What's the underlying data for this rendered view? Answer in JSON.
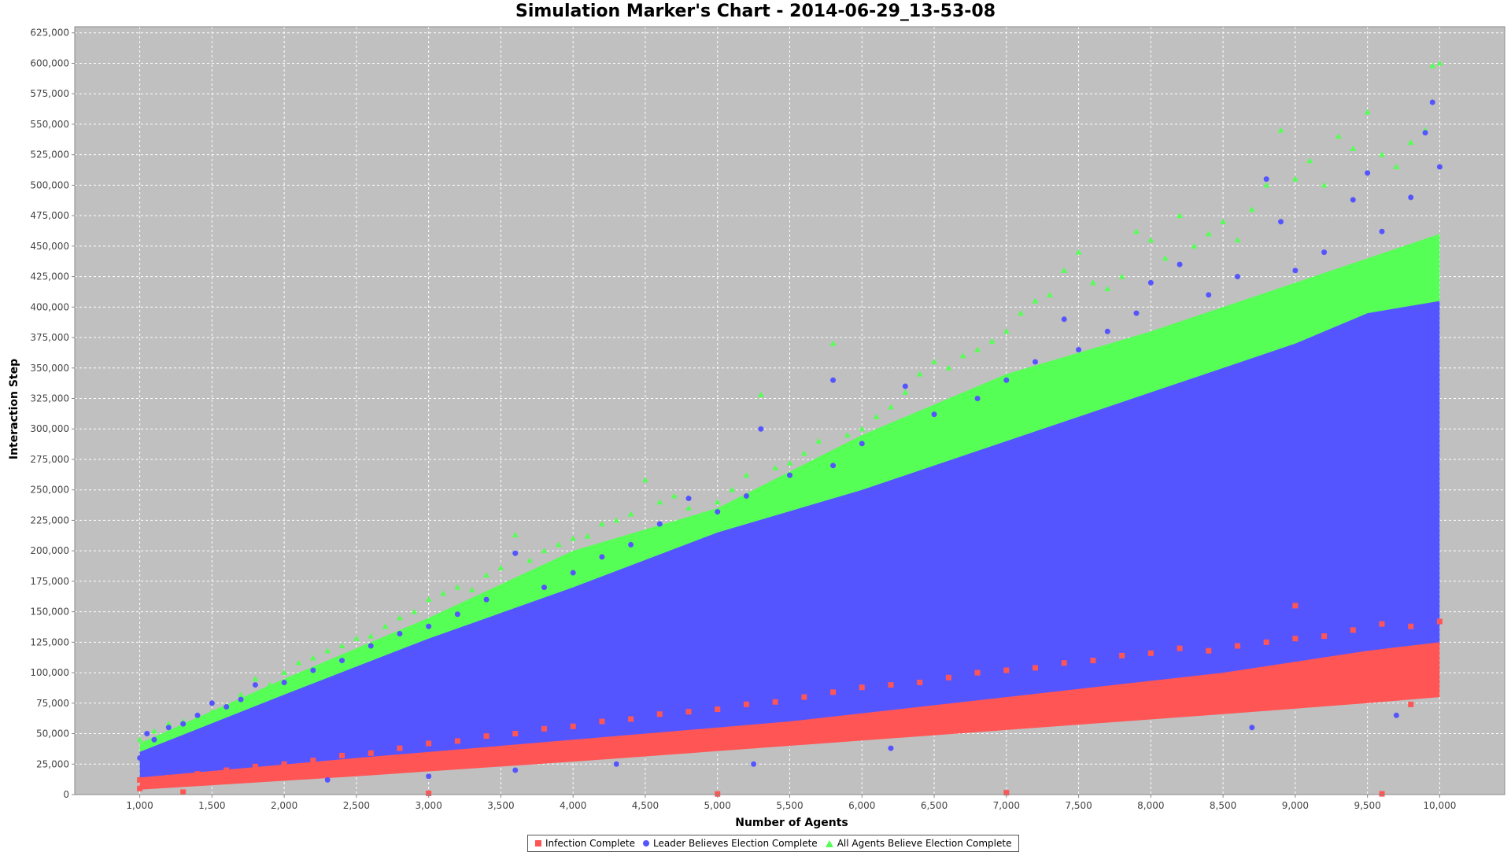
{
  "chart_data": {
    "type": "scatter",
    "title": "Simulation Marker's Chart - 2014-06-29_13-53-08",
    "xlabel": "Number of Agents",
    "ylabel": "Interaction Step",
    "xlim": [
      550,
      10450
    ],
    "ylim": [
      0,
      630000
    ],
    "x_ticks": [
      1000,
      1500,
      2000,
      2500,
      3000,
      3500,
      4000,
      4500,
      5000,
      5500,
      6000,
      6500,
      7000,
      7500,
      8000,
      8500,
      9000,
      9500,
      10000
    ],
    "x_tick_labels": [
      "1,000",
      "1,500",
      "2,000",
      "2,500",
      "3,000",
      "3,500",
      "4,000",
      "4,500",
      "5,000",
      "5,500",
      "6,000",
      "6,500",
      "7,000",
      "7,500",
      "8,000",
      "8,500",
      "9,000",
      "9,500",
      "10,000"
    ],
    "y_ticks": [
      0,
      25000,
      50000,
      75000,
      100000,
      125000,
      150000,
      175000,
      200000,
      225000,
      250000,
      275000,
      300000,
      325000,
      350000,
      375000,
      400000,
      425000,
      450000,
      475000,
      500000,
      525000,
      550000,
      575000,
      600000,
      625000
    ],
    "y_tick_labels": [
      "0",
      "25,000",
      "50,000",
      "75,000",
      "100,000",
      "125,000",
      "150,000",
      "175,000",
      "200,000",
      "225,000",
      "250,000",
      "275,000",
      "300,000",
      "325,000",
      "350,000",
      "375,000",
      "400,000",
      "425,000",
      "450,000",
      "475,000",
      "500,000",
      "525,000",
      "550,000",
      "575,000",
      "600,000",
      "625,000"
    ],
    "grid": true,
    "legend_position": "bottom-center",
    "background_color": "#c0c0c0",
    "series": [
      {
        "name": "All Agents Believe Election Complete",
        "marker": "triangle",
        "color": "#55ff55",
        "points": [
          [
            1000,
            45000
          ],
          [
            1100,
            52000
          ],
          [
            1200,
            58000
          ],
          [
            1300,
            60000
          ],
          [
            1400,
            64000
          ],
          [
            1500,
            68000
          ],
          [
            1600,
            72000
          ],
          [
            1700,
            82000
          ],
          [
            1800,
            95000
          ],
          [
            1900,
            90000
          ],
          [
            2000,
            100000
          ],
          [
            2100,
            108000
          ],
          [
            2200,
            112000
          ],
          [
            2300,
            118000
          ],
          [
            2400,
            122000
          ],
          [
            2500,
            128000
          ],
          [
            2600,
            130000
          ],
          [
            2700,
            138000
          ],
          [
            2800,
            145000
          ],
          [
            2900,
            150000
          ],
          [
            3000,
            160000
          ],
          [
            3100,
            165000
          ],
          [
            3200,
            170000
          ],
          [
            3300,
            168000
          ],
          [
            3400,
            180000
          ],
          [
            3500,
            186000
          ],
          [
            3600,
            213000
          ],
          [
            3700,
            192000
          ],
          [
            3800,
            200000
          ],
          [
            3900,
            205000
          ],
          [
            4000,
            210000
          ],
          [
            4100,
            212000
          ],
          [
            4200,
            222000
          ],
          [
            4300,
            225000
          ],
          [
            4400,
            230000
          ],
          [
            4500,
            258000
          ],
          [
            4600,
            240000
          ],
          [
            4700,
            245000
          ],
          [
            4800,
            235000
          ],
          [
            4900,
            230000
          ],
          [
            5000,
            240000
          ],
          [
            5100,
            250000
          ],
          [
            5200,
            262000
          ],
          [
            5300,
            328000
          ],
          [
            5400,
            268000
          ],
          [
            5500,
            272000
          ],
          [
            5600,
            280000
          ],
          [
            5700,
            290000
          ],
          [
            5800,
            370000
          ],
          [
            5900,
            295000
          ],
          [
            6000,
            300000
          ],
          [
            6100,
            310000
          ],
          [
            6200,
            318000
          ],
          [
            6300,
            330000
          ],
          [
            6400,
            345000
          ],
          [
            6500,
            355000
          ],
          [
            6600,
            350000
          ],
          [
            6700,
            360000
          ],
          [
            6800,
            365000
          ],
          [
            6900,
            372000
          ],
          [
            7000,
            380000
          ],
          [
            7100,
            395000
          ],
          [
            7200,
            405000
          ],
          [
            7300,
            410000
          ],
          [
            7400,
            430000
          ],
          [
            7500,
            445000
          ],
          [
            7600,
            420000
          ],
          [
            7700,
            415000
          ],
          [
            7800,
            425000
          ],
          [
            7900,
            462000
          ],
          [
            8000,
            455000
          ],
          [
            8100,
            440000
          ],
          [
            8200,
            475000
          ],
          [
            8300,
            450000
          ],
          [
            8400,
            460000
          ],
          [
            8500,
            470000
          ],
          [
            8600,
            455000
          ],
          [
            8700,
            480000
          ],
          [
            8800,
            500000
          ],
          [
            8900,
            545000
          ],
          [
            9000,
            505000
          ],
          [
            9100,
            520000
          ],
          [
            9200,
            500000
          ],
          [
            9300,
            540000
          ],
          [
            9400,
            530000
          ],
          [
            9500,
            560000
          ],
          [
            9600,
            525000
          ],
          [
            9700,
            515000
          ],
          [
            9800,
            535000
          ],
          [
            9900,
            545000
          ],
          [
            9950,
            598000
          ],
          [
            10000,
            600000
          ]
        ]
      },
      {
        "name": "Leader Believes Election Complete",
        "marker": "circle",
        "color": "#5555ff",
        "points": [
          [
            1000,
            30000
          ],
          [
            1050,
            50000
          ],
          [
            1100,
            45000
          ],
          [
            1200,
            55000
          ],
          [
            1300,
            58000
          ],
          [
            1400,
            65000
          ],
          [
            1500,
            75000
          ],
          [
            1600,
            72000
          ],
          [
            1700,
            78000
          ],
          [
            1800,
            90000
          ],
          [
            2000,
            92000
          ],
          [
            2200,
            102000
          ],
          [
            2300,
            12000
          ],
          [
            2400,
            110000
          ],
          [
            2600,
            122000
          ],
          [
            2800,
            132000
          ],
          [
            3000,
            138000
          ],
          [
            3000,
            15000
          ],
          [
            3200,
            148000
          ],
          [
            3400,
            160000
          ],
          [
            3600,
            198000
          ],
          [
            3600,
            20000
          ],
          [
            3800,
            170000
          ],
          [
            4000,
            182000
          ],
          [
            4200,
            195000
          ],
          [
            4300,
            25000
          ],
          [
            4400,
            205000
          ],
          [
            4600,
            222000
          ],
          [
            4800,
            243000
          ],
          [
            5000,
            232000
          ],
          [
            5200,
            245000
          ],
          [
            5250,
            25000
          ],
          [
            5300,
            300000
          ],
          [
            5500,
            262000
          ],
          [
            5800,
            340000
          ],
          [
            5800,
            270000
          ],
          [
            6000,
            288000
          ],
          [
            6200,
            38000
          ],
          [
            6300,
            335000
          ],
          [
            6500,
            312000
          ],
          [
            6800,
            325000
          ],
          [
            7000,
            340000
          ],
          [
            7200,
            355000
          ],
          [
            7400,
            390000
          ],
          [
            7500,
            365000
          ],
          [
            7700,
            380000
          ],
          [
            7900,
            395000
          ],
          [
            8000,
            420000
          ],
          [
            8200,
            435000
          ],
          [
            8400,
            410000
          ],
          [
            8600,
            425000
          ],
          [
            8700,
            55000
          ],
          [
            8800,
            505000
          ],
          [
            8900,
            470000
          ],
          [
            9000,
            430000
          ],
          [
            9200,
            445000
          ],
          [
            9400,
            488000
          ],
          [
            9500,
            510000
          ],
          [
            9600,
            462000
          ],
          [
            9700,
            65000
          ],
          [
            9800,
            490000
          ],
          [
            9900,
            543000
          ],
          [
            9950,
            568000
          ],
          [
            10000,
            515000
          ]
        ]
      },
      {
        "name": "Infection Complete",
        "marker": "square",
        "color": "#ff5555",
        "points": [
          [
            1000,
            5000
          ],
          [
            1000,
            12000
          ],
          [
            1200,
            14000
          ],
          [
            1400,
            17000
          ],
          [
            1600,
            20000
          ],
          [
            1800,
            23000
          ],
          [
            2000,
            25000
          ],
          [
            2200,
            28000
          ],
          [
            2400,
            32000
          ],
          [
            2600,
            34000
          ],
          [
            2800,
            38000
          ],
          [
            3000,
            42000
          ],
          [
            3200,
            44000
          ],
          [
            3400,
            48000
          ],
          [
            3600,
            50000
          ],
          [
            3800,
            54000
          ],
          [
            4000,
            56000
          ],
          [
            4200,
            60000
          ],
          [
            4400,
            62000
          ],
          [
            4600,
            66000
          ],
          [
            4800,
            68000
          ],
          [
            5000,
            70000
          ],
          [
            5200,
            74000
          ],
          [
            5400,
            76000
          ],
          [
            5600,
            80000
          ],
          [
            5800,
            84000
          ],
          [
            6000,
            88000
          ],
          [
            6200,
            90000
          ],
          [
            6400,
            92000
          ],
          [
            6600,
            96000
          ],
          [
            6800,
            100000
          ],
          [
            7000,
            102000
          ],
          [
            7200,
            104000
          ],
          [
            7400,
            108000
          ],
          [
            7600,
            110000
          ],
          [
            7800,
            114000
          ],
          [
            8000,
            116000
          ],
          [
            8200,
            120000
          ],
          [
            8400,
            118000
          ],
          [
            8600,
            122000
          ],
          [
            8800,
            125000
          ],
          [
            9000,
            128000
          ],
          [
            9200,
            130000
          ],
          [
            9400,
            135000
          ],
          [
            9600,
            140000
          ],
          [
            9800,
            138000
          ],
          [
            10000,
            142000
          ],
          [
            9000,
            155000
          ],
          [
            1300,
            2000
          ],
          [
            3000,
            1000
          ],
          [
            5000,
            500
          ],
          [
            7000,
            1500
          ],
          [
            9600,
            600
          ],
          [
            9800,
            74000
          ]
        ]
      }
    ],
    "bands": [
      {
        "series": "All Agents Believe Election Complete",
        "lower": [
          [
            1000,
            10000
          ],
          [
            2500,
            20000
          ],
          [
            4000,
            30000
          ],
          [
            5500,
            45000
          ],
          [
            7000,
            60000
          ],
          [
            8500,
            75000
          ],
          [
            10000,
            85000
          ]
        ],
        "upper": [
          [
            1000,
            42000
          ],
          [
            2000,
            95000
          ],
          [
            3000,
            145000
          ],
          [
            4000,
            200000
          ],
          [
            5000,
            235000
          ],
          [
            6000,
            295000
          ],
          [
            7000,
            345000
          ],
          [
            8000,
            380000
          ],
          [
            9000,
            420000
          ],
          [
            9500,
            440000
          ],
          [
            10000,
            460000
          ]
        ]
      },
      {
        "series": "Leader Believes Election Complete",
        "lower": [
          [
            1000,
            12000
          ],
          [
            2500,
            22000
          ],
          [
            4000,
            32000
          ],
          [
            5500,
            47000
          ],
          [
            7000,
            62000
          ],
          [
            8500,
            77000
          ],
          [
            10000,
            90000
          ]
        ],
        "upper": [
          [
            1000,
            35000
          ],
          [
            2000,
            82000
          ],
          [
            3000,
            128000
          ],
          [
            4000,
            170000
          ],
          [
            5000,
            215000
          ],
          [
            6000,
            250000
          ],
          [
            7000,
            290000
          ],
          [
            8000,
            330000
          ],
          [
            9000,
            370000
          ],
          [
            9500,
            395000
          ],
          [
            10000,
            405000
          ]
        ]
      },
      {
        "series": "Infection Complete",
        "lower": [
          [
            1000,
            4000
          ],
          [
            2500,
            15000
          ],
          [
            4000,
            27000
          ],
          [
            5500,
            40000
          ],
          [
            7000,
            53000
          ],
          [
            8500,
            66000
          ],
          [
            9500,
            75000
          ],
          [
            10000,
            80000
          ]
        ],
        "upper": [
          [
            1000,
            14000
          ],
          [
            2500,
            30000
          ],
          [
            4000,
            45000
          ],
          [
            5500,
            60000
          ],
          [
            7000,
            80000
          ],
          [
            8500,
            100000
          ],
          [
            9500,
            118000
          ],
          [
            10000,
            125000
          ]
        ]
      }
    ]
  }
}
